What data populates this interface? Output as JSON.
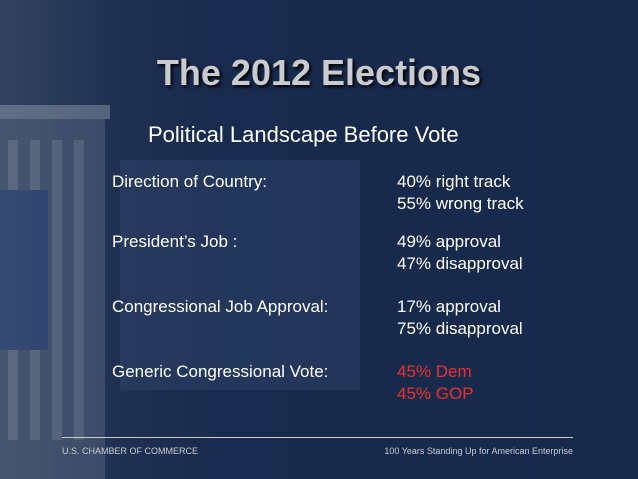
{
  "header": {
    "title": "The 2012 Elections",
    "subtitle": "Political Landscape Before Vote"
  },
  "rows": [
    {
      "label": "Direction of Country:",
      "values": [
        "40% right track",
        "55% wrong track"
      ]
    },
    {
      "label": "President’s Job :",
      "values": [
        "49% approval",
        "47% disapproval"
      ]
    },
    {
      "label": "Congressional Job Approval:",
      "values": [
        "17% approval",
        "75% disapproval"
      ]
    },
    {
      "label": "Generic Congressional Vote:",
      "values": [
        "45% Dem",
        "45% GOP"
      ]
    }
  ],
  "footer": {
    "left": "U.S. CHAMBER OF COMMERCE",
    "right": "100 Years Standing Up for American Enterprise"
  }
}
